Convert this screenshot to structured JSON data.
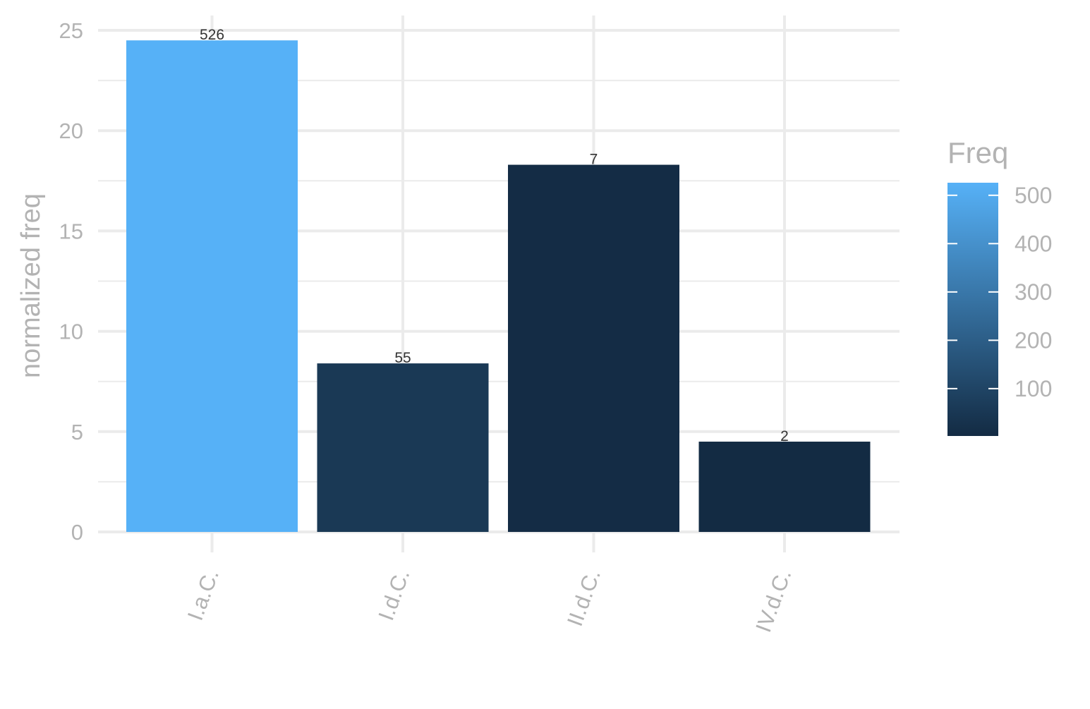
{
  "chart_data": {
    "type": "bar",
    "categories": [
      "I.a.C.",
      "I.d.C.",
      "II.d.C.",
      "IV.d.C."
    ],
    "values": [
      24.5,
      8.4,
      18.3,
      4.5
    ],
    "freq": [
      526,
      55,
      7,
      2
    ],
    "bar_labels": [
      "526",
      "55",
      "7",
      "2"
    ],
    "title": "",
    "xlabel": "",
    "ylabel": "normalized freq",
    "ylim": [
      0,
      25
    ],
    "yticks": [
      0,
      5,
      10,
      15,
      20,
      25
    ],
    "grid": true,
    "legend": {
      "title": "Freq",
      "position": "right",
      "type": "colorbar",
      "range": [
        2,
        526
      ],
      "ticks": [
        100,
        200,
        300,
        400,
        500
      ],
      "low_color": "#132b43",
      "high_color": "#56b1f7"
    },
    "colors": {
      "grid": "#ebebeb",
      "tick_text": "#b3b3b3",
      "bar_label_text": "#333333"
    }
  }
}
